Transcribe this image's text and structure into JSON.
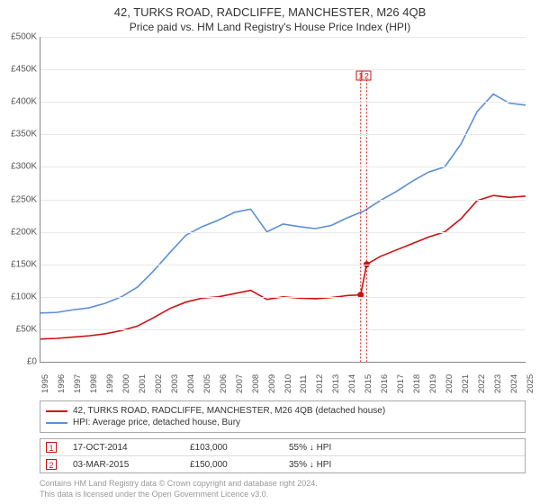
{
  "title": "42, TURKS ROAD, RADCLIFFE, MANCHESTER, M26 4QB",
  "subtitle": "Price paid vs. HM Land Registry's House Price Index (HPI)",
  "chart": {
    "type": "line",
    "xmin": 1995,
    "xmax": 2025,
    "ymin": 0,
    "ymax": 500000,
    "ytick_step": 50000,
    "yticks": [
      "£0",
      "£50K",
      "£100K",
      "£150K",
      "£200K",
      "£250K",
      "£300K",
      "£350K",
      "£400K",
      "£450K",
      "£500K"
    ],
    "xticks": [
      1995,
      1996,
      1997,
      1998,
      1999,
      2000,
      2001,
      2002,
      2003,
      2004,
      2005,
      2006,
      2007,
      2008,
      2009,
      2010,
      2011,
      2012,
      2013,
      2014,
      2015,
      2016,
      2017,
      2018,
      2019,
      2020,
      2021,
      2022,
      2023,
      2024,
      2025
    ],
    "grid_color": "#e9e9e9",
    "background_color": "#ffffff",
    "line_width": 1.6,
    "series": [
      {
        "name": "42, TURKS ROAD, RADCLIFFE, MANCHESTER, M26 4QB (detached house)",
        "color": "#cc1111",
        "data": [
          [
            1995,
            35000
          ],
          [
            1996,
            36000
          ],
          [
            1997,
            38000
          ],
          [
            1998,
            40000
          ],
          [
            1999,
            43000
          ],
          [
            2000,
            48000
          ],
          [
            2001,
            55000
          ],
          [
            2002,
            68000
          ],
          [
            2003,
            82000
          ],
          [
            2004,
            92000
          ],
          [
            2005,
            98000
          ],
          [
            2006,
            100000
          ],
          [
            2007,
            105000
          ],
          [
            2008,
            110000
          ],
          [
            2009,
            96000
          ],
          [
            2010,
            100000
          ],
          [
            2011,
            98000
          ],
          [
            2012,
            97000
          ],
          [
            2013,
            99000
          ],
          [
            2014,
            102000
          ],
          [
            2014.8,
            103000
          ],
          [
            2015.17,
            150000
          ],
          [
            2016,
            162000
          ],
          [
            2017,
            172000
          ],
          [
            2018,
            182000
          ],
          [
            2019,
            192000
          ],
          [
            2020,
            200000
          ],
          [
            2021,
            220000
          ],
          [
            2022,
            248000
          ],
          [
            2023,
            256000
          ],
          [
            2024,
            253000
          ],
          [
            2025,
            255000
          ]
        ]
      },
      {
        "name": "HPI: Average price, detached house, Bury",
        "color": "#5b8fd6",
        "data": [
          [
            1995,
            75000
          ],
          [
            1996,
            76000
          ],
          [
            1997,
            80000
          ],
          [
            1998,
            83000
          ],
          [
            1999,
            90000
          ],
          [
            2000,
            100000
          ],
          [
            2001,
            115000
          ],
          [
            2002,
            140000
          ],
          [
            2003,
            168000
          ],
          [
            2004,
            195000
          ],
          [
            2005,
            208000
          ],
          [
            2006,
            218000
          ],
          [
            2007,
            230000
          ],
          [
            2008,
            235000
          ],
          [
            2009,
            200000
          ],
          [
            2010,
            212000
          ],
          [
            2011,
            208000
          ],
          [
            2012,
            205000
          ],
          [
            2013,
            210000
          ],
          [
            2014,
            222000
          ],
          [
            2015,
            232000
          ],
          [
            2016,
            248000
          ],
          [
            2017,
            262000
          ],
          [
            2018,
            278000
          ],
          [
            2019,
            292000
          ],
          [
            2020,
            300000
          ],
          [
            2021,
            335000
          ],
          [
            2022,
            385000
          ],
          [
            2023,
            412000
          ],
          [
            2024,
            398000
          ],
          [
            2025,
            395000
          ]
        ]
      }
    ],
    "sale_markers": [
      {
        "num": "1",
        "x": 2014.8,
        "color": "#cc1111"
      },
      {
        "num": "2",
        "x": 2015.17,
        "color": "#cc1111"
      }
    ],
    "sale_points": [
      {
        "x": 2014.8,
        "y": 103000,
        "color": "#cc1111"
      },
      {
        "x": 2015.17,
        "y": 150000,
        "color": "#cc1111"
      }
    ],
    "marker_y_top": 440000
  },
  "legend": [
    {
      "color": "#cc1111",
      "label": "42, TURKS ROAD, RADCLIFFE, MANCHESTER, M26 4QB (detached house)"
    },
    {
      "color": "#5b8fd6",
      "label": "HPI: Average price, detached house, Bury"
    }
  ],
  "sales": [
    {
      "num": "1",
      "color": "#cc1111",
      "date": "17-OCT-2014",
      "price": "£103,000",
      "diff": "55% ↓ HPI"
    },
    {
      "num": "2",
      "color": "#cc1111",
      "date": "03-MAR-2015",
      "price": "£150,000",
      "diff": "35% ↓ HPI"
    }
  ],
  "attribution": {
    "line1": "Contains HM Land Registry data © Crown copyright and database right 2024.",
    "line2": "This data is licensed under the Open Government Licence v3.0."
  }
}
